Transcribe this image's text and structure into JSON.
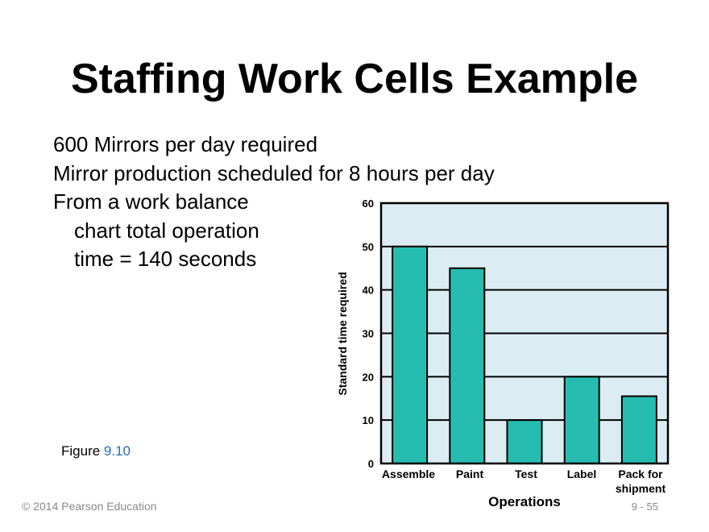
{
  "slide": {
    "title": "Staffing Work Cells Example",
    "bullets": [
      "600 Mirrors per day required",
      "Mirror production scheduled for 8 hours per day",
      "From a work balance",
      "chart total operation",
      "time = 140 seconds"
    ],
    "figure_prefix": "Figure ",
    "figure_number": "9.10",
    "copyright": "© 2014 Pearson Education",
    "page_number": "9 - 55"
  },
  "colors": {
    "bar": "#26bdb0",
    "plot_background": "#dcecf3",
    "figure_number": "#2b6cb0",
    "footer": "#8a8a8a"
  },
  "chart_data": {
    "type": "bar",
    "categories": [
      "Assemble",
      "Paint",
      "Test",
      "Label",
      "Pack for shipment"
    ],
    "values": [
      50,
      45,
      10,
      20,
      15.5
    ],
    "xlabel": "Operations",
    "ylabel": "Standard time required",
    "ylim": [
      0,
      60
    ],
    "yticks": [
      "0",
      "10",
      "20",
      "30",
      "40",
      "50",
      "60"
    ],
    "grid": true
  }
}
